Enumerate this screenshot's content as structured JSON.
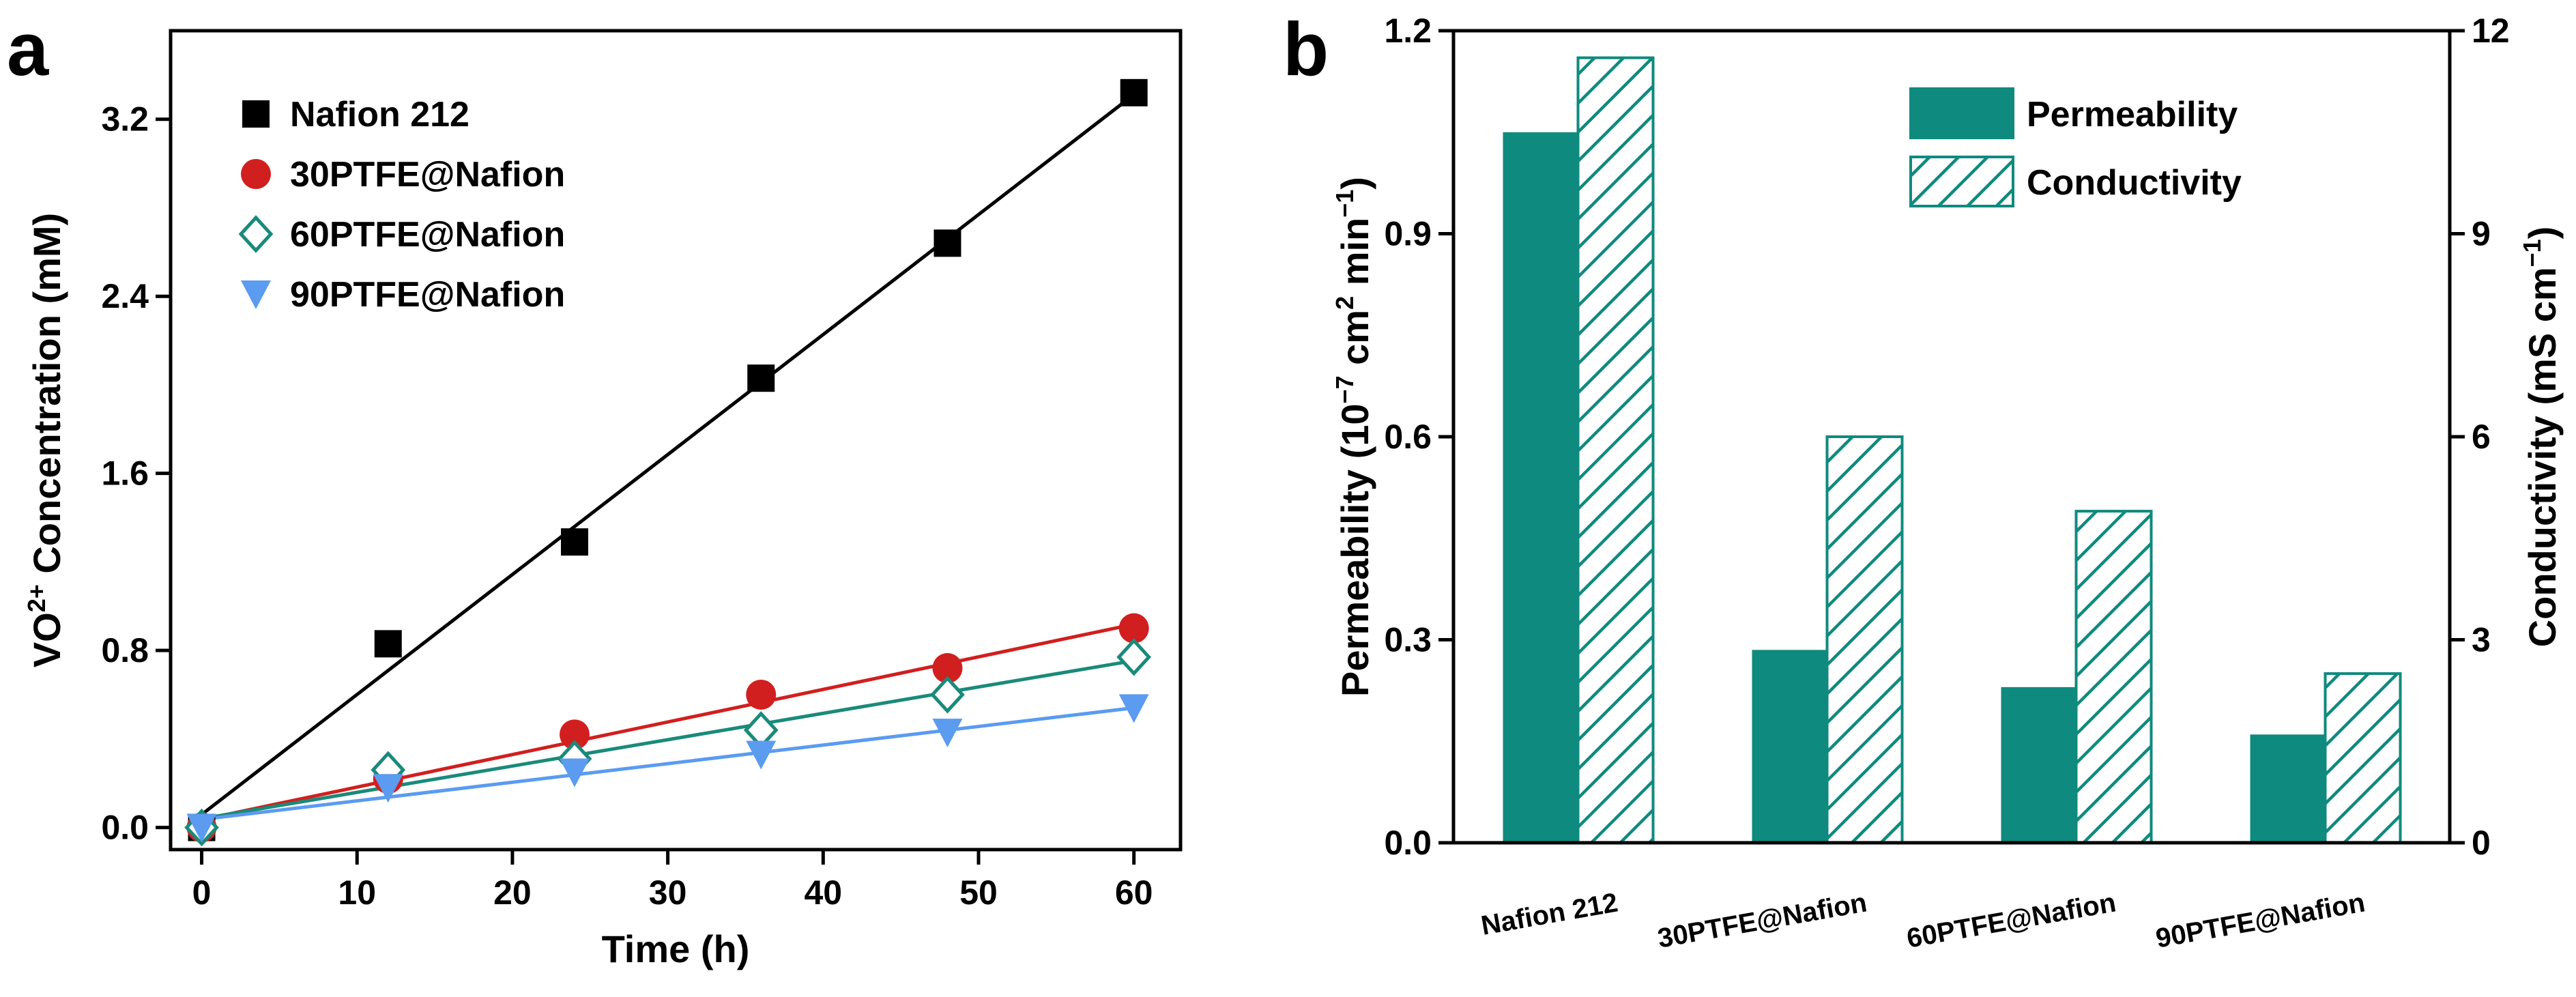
{
  "panels": [
    {
      "label": "a"
    },
    {
      "label": "b"
    }
  ],
  "chart_data": [
    {
      "type": "scatter",
      "xlabel": "Time (h)",
      "ylabel": {
        "base": "VO",
        "sup": "2+",
        "rest": " Concentration (mM)"
      },
      "xlim": [
        -2,
        63
      ],
      "ylim": [
        -0.1,
        3.6
      ],
      "xticks": [
        0,
        10,
        20,
        30,
        40,
        50,
        60
      ],
      "yticks": [
        0.0,
        0.8,
        1.6,
        2.4,
        3.2
      ],
      "ytick_labels": [
        "0.0",
        "0.8",
        "1.6",
        "2.4",
        "3.2"
      ],
      "legend_position": "top-left",
      "fit_lines": true,
      "series": [
        {
          "name": "Nafion 212",
          "marker": "square",
          "color": "#000000",
          "x": [
            0,
            12,
            24,
            36,
            48,
            60
          ],
          "y": [
            0.0,
            0.83,
            1.29,
            2.03,
            2.64,
            3.32
          ]
        },
        {
          "name": "30PTFE@Nafion",
          "marker": "circle",
          "color": "#d11f1f",
          "x": [
            0,
            12,
            24,
            36,
            48,
            60
          ],
          "y": [
            0.0,
            0.22,
            0.42,
            0.6,
            0.72,
            0.9
          ]
        },
        {
          "name": "60PTFE@Nafion",
          "marker": "diamond-open",
          "color": "#1a8a7a",
          "x": [
            0,
            12,
            24,
            36,
            48,
            60
          ],
          "y": [
            0.0,
            0.26,
            0.31,
            0.44,
            0.6,
            0.77
          ]
        },
        {
          "name": "90PTFE@Nafion",
          "marker": "triangle-down",
          "color": "#5b9bf0",
          "x": [
            0,
            12,
            24,
            36,
            48,
            60
          ],
          "y": [
            0.0,
            0.18,
            0.25,
            0.33,
            0.43,
            0.54
          ]
        }
      ]
    },
    {
      "type": "bar",
      "categories": [
        "Nafion 212",
        "30PTFE@Nafion",
        "60PTFE@Nafion",
        "90PTFE@Nafion"
      ],
      "ylabel_left": {
        "base": "Permeability (10",
        "sup1": "−7",
        "mid": " cm",
        "sup2": "2",
        "mid2": " min",
        "sup3": "−1",
        "end": ")"
      },
      "ylabel_right": {
        "base": "Conductivity (mS cm",
        "sup": "−1",
        "end": ")"
      },
      "ylim_left": [
        0,
        1.2
      ],
      "ylim_right": [
        0,
        12
      ],
      "yticks_left": [
        "0.0",
        "0.3",
        "0.6",
        "0.9",
        "1.2"
      ],
      "yticks_right": [
        "0",
        "3",
        "6",
        "9",
        "12"
      ],
      "legend_position": "top-right",
      "color": "#0f8a7e",
      "series": [
        {
          "name": "Permeability",
          "axis": "left",
          "style": "solid",
          "values": [
            1.05,
            0.285,
            0.23,
            0.16
          ]
        },
        {
          "name": "Conductivity",
          "axis": "right",
          "style": "hatched",
          "values": [
            11.6,
            6.0,
            4.9,
            2.5
          ]
        }
      ]
    }
  ]
}
